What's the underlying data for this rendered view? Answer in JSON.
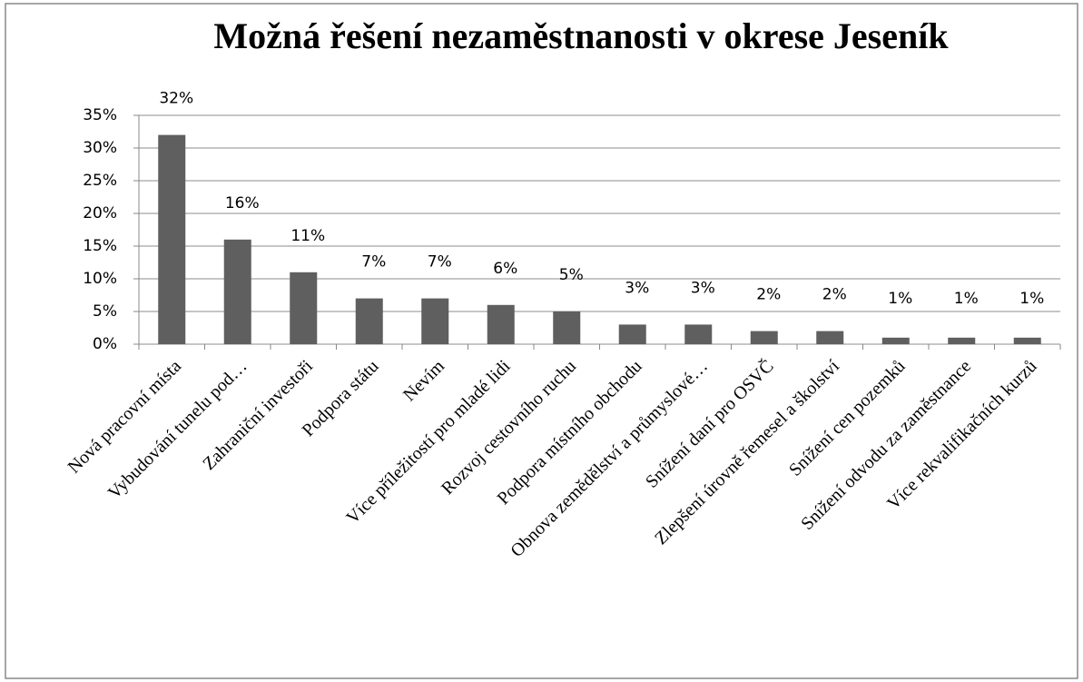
{
  "chart_data": {
    "type": "bar",
    "title": "Možná řešení nezaměstnanosti v okrese Jeseník",
    "categories": [
      "Nová pracovní místa",
      "Vybudování tunelu pod…",
      "Zahraniční investoři",
      "Podpora státu",
      "Nevím",
      "Více příležitostí pro mladé lidi",
      "Rozvoj cestovního ruchu",
      "Podpora místního obchodu",
      "Obnova zemědělství a průmyslové…",
      "Snížení daní pro OSVČ",
      "Zlepšení úrovně řemesel a školství",
      "Snížení cen pozemků",
      "Snížení odvodu za zaměstnance",
      "Více rekvalifikačních kurzů"
    ],
    "values": [
      32,
      16,
      11,
      7,
      7,
      6,
      5,
      3,
      3,
      2,
      2,
      1,
      1,
      1
    ],
    "value_labels": [
      "32%",
      "16%",
      "11%",
      "7%",
      "7%",
      "6%",
      "5%",
      "3%",
      "3%",
      "2%",
      "2%",
      "1%",
      "1%",
      "1%"
    ],
    "color": "#5f5f5f",
    "ylim": [
      0,
      35
    ],
    "yticks": [
      {
        "value": 0,
        "label": "0%"
      },
      {
        "value": 5,
        "label": "5%"
      },
      {
        "value": 10,
        "label": "10%"
      },
      {
        "value": 15,
        "label": "15%"
      },
      {
        "value": 20,
        "label": "20%"
      },
      {
        "value": 25,
        "label": "25%"
      },
      {
        "value": 30,
        "label": "30%"
      },
      {
        "value": 35,
        "label": "35%"
      }
    ],
    "grid": true
  }
}
